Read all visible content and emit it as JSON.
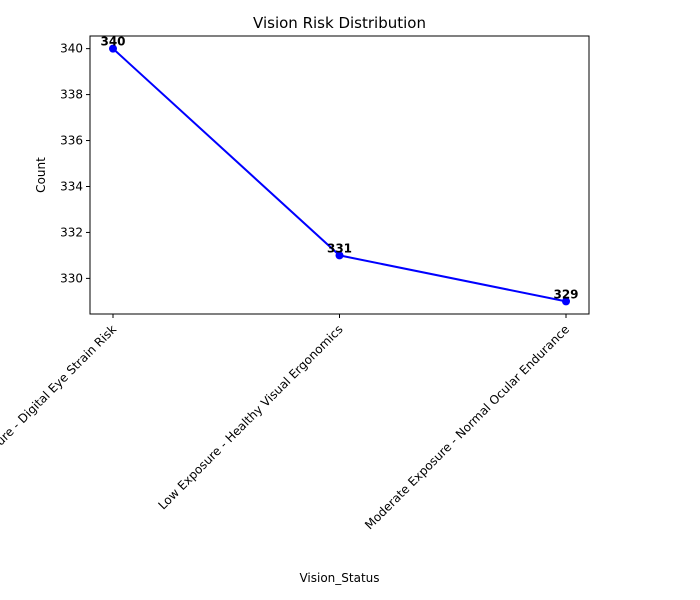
{
  "chart_data": {
    "type": "line",
    "title": "Vision Risk Distribution",
    "xlabel": "Vision_Status",
    "ylabel": "Count",
    "categories": [
      "High Exposure - Digital Eye Strain Risk",
      "Low Exposure - Healthy Visual Ergonomics",
      "Moderate Exposure - Normal Ocular Endurance"
    ],
    "values": [
      340,
      331,
      329
    ],
    "ylim": [
      328.45,
      340.55
    ],
    "yticks": [
      330,
      332,
      334,
      336,
      338,
      340
    ],
    "grid": false,
    "line_color": "#0000ff",
    "marker_color": "#0000ff"
  }
}
